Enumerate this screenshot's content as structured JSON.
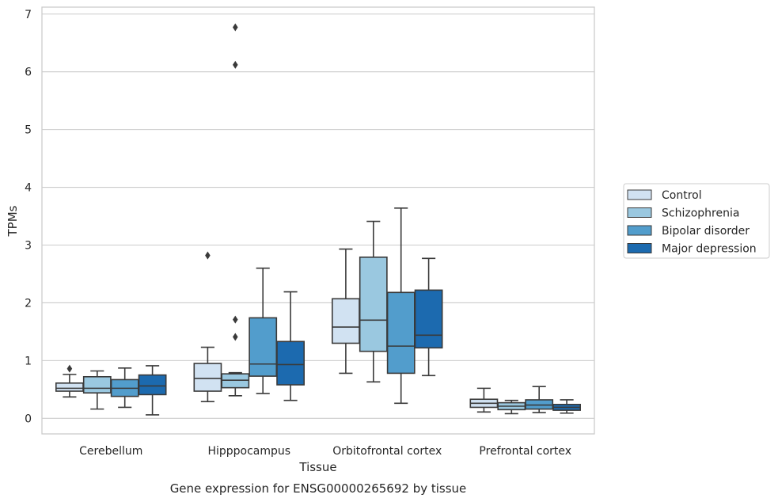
{
  "chart_data": {
    "type": "box",
    "title": "Gene expression for ENSG00000265692 by tissue",
    "xlabel": "Tissue",
    "ylabel": "TPMs",
    "ylim": [
      -0.27,
      7.12
    ],
    "yticks": [
      0,
      1,
      2,
      3,
      4,
      5,
      6,
      7
    ],
    "grid": true,
    "legend_position": "right",
    "categories": [
      "Cerebellum",
      "Hipppocampus",
      "Orbitofrontal cortex",
      "Prefrontal cortex"
    ],
    "series": [
      {
        "name": "Control",
        "color": "#d1e2f2",
        "boxes": [
          {
            "whislo": 0.37,
            "q1": 0.47,
            "med": 0.52,
            "q3": 0.61,
            "whishi": 0.76,
            "fliers": [
              0.86
            ]
          },
          {
            "whislo": 0.29,
            "q1": 0.47,
            "med": 0.69,
            "q3": 0.95,
            "whishi": 1.23,
            "fliers": [
              2.82
            ]
          },
          {
            "whislo": 0.78,
            "q1": 1.3,
            "med": 1.58,
            "q3": 2.07,
            "whishi": 2.93,
            "fliers": []
          },
          {
            "whislo": 0.11,
            "q1": 0.19,
            "med": 0.26,
            "q3": 0.33,
            "whishi": 0.52,
            "fliers": []
          }
        ]
      },
      {
        "name": "Schizophrenia",
        "color": "#9ac8e0",
        "boxes": [
          {
            "whislo": 0.16,
            "q1": 0.44,
            "med": 0.52,
            "q3": 0.72,
            "whishi": 0.82,
            "fliers": []
          },
          {
            "whislo": 0.39,
            "q1": 0.53,
            "med": 0.66,
            "q3": 0.77,
            "whishi": 0.79,
            "fliers": [
              1.41,
              1.71,
              6.12,
              6.77
            ]
          },
          {
            "whislo": 0.63,
            "q1": 1.16,
            "med": 1.7,
            "q3": 2.79,
            "whishi": 3.41,
            "fliers": []
          },
          {
            "whislo": 0.08,
            "q1": 0.15,
            "med": 0.21,
            "q3": 0.27,
            "whishi": 0.31,
            "fliers": []
          }
        ]
      },
      {
        "name": "Bipolar disorder",
        "color": "#529dcc",
        "boxes": [
          {
            "whislo": 0.19,
            "q1": 0.38,
            "med": 0.52,
            "q3": 0.67,
            "whishi": 0.87,
            "fliers": []
          },
          {
            "whislo": 0.43,
            "q1": 0.73,
            "med": 0.94,
            "q3": 1.74,
            "whishi": 2.6,
            "fliers": []
          },
          {
            "whislo": 0.26,
            "q1": 0.78,
            "med": 1.25,
            "q3": 2.18,
            "whishi": 3.64,
            "fliers": []
          },
          {
            "whislo": 0.1,
            "q1": 0.16,
            "med": 0.23,
            "q3": 0.32,
            "whishi": 0.55,
            "fliers": []
          }
        ]
      },
      {
        "name": "Major depression",
        "color": "#1c6aaf",
        "boxes": [
          {
            "whislo": 0.06,
            "q1": 0.41,
            "med": 0.56,
            "q3": 0.75,
            "whishi": 0.91,
            "fliers": []
          },
          {
            "whislo": 0.31,
            "q1": 0.58,
            "med": 0.93,
            "q3": 1.33,
            "whishi": 2.19,
            "fliers": []
          },
          {
            "whislo": 0.74,
            "q1": 1.22,
            "med": 1.44,
            "q3": 2.22,
            "whishi": 2.77,
            "fliers": []
          },
          {
            "whislo": 0.09,
            "q1": 0.14,
            "med": 0.19,
            "q3": 0.24,
            "whishi": 0.32,
            "fliers": []
          }
        ]
      }
    ]
  }
}
